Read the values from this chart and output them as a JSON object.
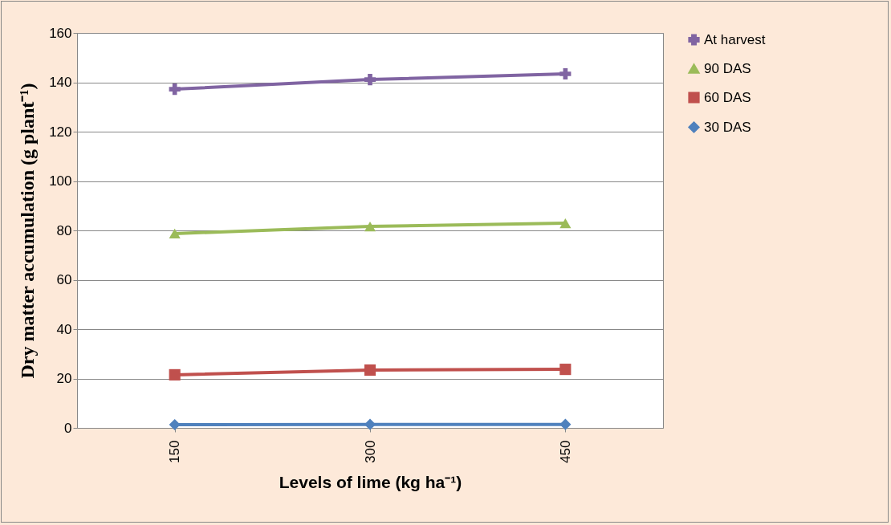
{
  "chart_data": {
    "type": "line",
    "xlabel": "Levels of lime (kg ha⁻¹)",
    "ylabel": "Dry matter accumulation (g plant⁻¹)",
    "categories": [
      "150",
      "300",
      "450"
    ],
    "series": [
      {
        "name": "At harvest",
        "color": "#8064a2",
        "marker": "cross",
        "values": [
          137.2,
          141.1,
          143.4
        ]
      },
      {
        "name": "90 DAS",
        "color": "#9bbb59",
        "marker": "triangle",
        "values": [
          78.7,
          81.6,
          82.9
        ]
      },
      {
        "name": "60 DAS",
        "color": "#c0504d",
        "marker": "square",
        "values": [
          21.5,
          23.4,
          23.7
        ]
      },
      {
        "name": "30 DAS",
        "color": "#4f81bd",
        "marker": "diamond",
        "values": [
          1.3,
          1.4,
          1.4
        ]
      }
    ],
    "ylim": [
      0,
      160
    ],
    "yticks": [
      0,
      20,
      40,
      60,
      80,
      100,
      120,
      140,
      160
    ],
    "grid": "y",
    "legend": "right",
    "line_style": "solid"
  }
}
